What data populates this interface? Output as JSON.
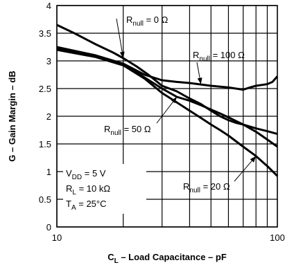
{
  "chart_data": {
    "type": "line",
    "x_scale": "log",
    "xlim": [
      10,
      100
    ],
    "ylim": [
      0,
      4
    ],
    "grid": true,
    "xlabel": {
      "main": "C",
      "sub": "L",
      "rest": " – Load Capacitance – pF"
    },
    "ylabel": "G – Gain Margin – dB",
    "x_ticks": [
      {
        "value": 10,
        "label": "10"
      },
      {
        "value": 100,
        "label": "100"
      }
    ],
    "y_ticks": [
      {
        "value": 0,
        "label": "0"
      },
      {
        "value": 0.5,
        "label": "0.5"
      },
      {
        "value": 1,
        "label": "1"
      },
      {
        "value": 1.5,
        "label": "1.5"
      },
      {
        "value": 2,
        "label": "2"
      },
      {
        "value": 2.5,
        "label": "2.5"
      },
      {
        "value": 3,
        "label": "3"
      },
      {
        "value": 3.5,
        "label": "3.5"
      },
      {
        "value": 4,
        "label": "4"
      }
    ],
    "series": [
      {
        "name": "Rnull = 0 Ω",
        "points": [
          [
            10,
            3.65
          ],
          [
            12,
            3.5
          ],
          [
            15,
            3.3
          ],
          [
            18,
            3.15
          ],
          [
            20,
            3.05
          ],
          [
            23,
            2.9
          ],
          [
            26,
            2.75
          ],
          [
            30,
            2.55
          ],
          [
            35,
            2.45
          ],
          [
            40,
            2.32
          ],
          [
            45,
            2.22
          ],
          [
            50,
            2.1
          ],
          [
            55,
            2.0
          ],
          [
            60,
            1.93
          ],
          [
            65,
            1.88
          ],
          [
            70,
            1.85
          ],
          [
            80,
            1.78
          ],
          [
            90,
            1.73
          ],
          [
            100,
            1.68
          ]
        ]
      },
      {
        "name": "Rnull = 100 Ω",
        "points": [
          [
            10,
            3.25
          ],
          [
            15,
            3.1
          ],
          [
            20,
            2.95
          ],
          [
            25,
            2.75
          ],
          [
            30,
            2.65
          ],
          [
            35,
            2.62
          ],
          [
            40,
            2.6
          ],
          [
            50,
            2.55
          ],
          [
            60,
            2.52
          ],
          [
            70,
            2.48
          ],
          [
            75,
            2.52
          ],
          [
            80,
            2.55
          ],
          [
            90,
            2.58
          ],
          [
            95,
            2.62
          ],
          [
            100,
            2.72
          ]
        ]
      },
      {
        "name": "Rnull = 50 Ω",
        "points": [
          [
            10,
            3.22
          ],
          [
            15,
            3.08
          ],
          [
            20,
            2.95
          ],
          [
            25,
            2.7
          ],
          [
            30,
            2.5
          ],
          [
            35,
            2.35
          ],
          [
            40,
            2.28
          ],
          [
            45,
            2.2
          ],
          [
            50,
            2.12
          ],
          [
            55,
            2.05
          ],
          [
            60,
            1.98
          ],
          [
            70,
            1.85
          ],
          [
            80,
            1.72
          ],
          [
            90,
            1.58
          ],
          [
            100,
            1.45
          ]
        ]
      },
      {
        "name": "Rnull = 20 Ω",
        "points": [
          [
            10,
            3.2
          ],
          [
            15,
            3.07
          ],
          [
            20,
            2.92
          ],
          [
            25,
            2.68
          ],
          [
            30,
            2.42
          ],
          [
            35,
            2.25
          ],
          [
            40,
            2.1
          ],
          [
            45,
            1.97
          ],
          [
            50,
            1.85
          ],
          [
            55,
            1.75
          ],
          [
            60,
            1.65
          ],
          [
            70,
            1.45
          ],
          [
            80,
            1.28
          ],
          [
            90,
            1.1
          ],
          [
            100,
            0.92
          ]
        ]
      }
    ],
    "annotations": [
      {
        "main": "R",
        "sub": "null",
        "rest": " = 0 Ω",
        "arrow_to": [
          20,
          3.05
        ]
      },
      {
        "main": "R",
        "sub": "null",
        "rest": " = 100 Ω",
        "arrow_to": [
          45,
          2.58
        ]
      },
      {
        "main": "R",
        "sub": "null",
        "rest": " = 50 Ω",
        "arrow_to": [
          35,
          2.35
        ]
      },
      {
        "main": "R",
        "sub": "null",
        "rest": " = 20 Ω",
        "arrow_to": [
          80,
          1.28
        ]
      }
    ],
    "conditions": [
      {
        "main": "V",
        "sub": "DD",
        "rest": " = 5 V"
      },
      {
        "main": "R",
        "sub": "L",
        "rest": " = 10 kΩ"
      },
      {
        "main": "T",
        "sub": "A",
        "rest": " = 25°C"
      }
    ]
  }
}
